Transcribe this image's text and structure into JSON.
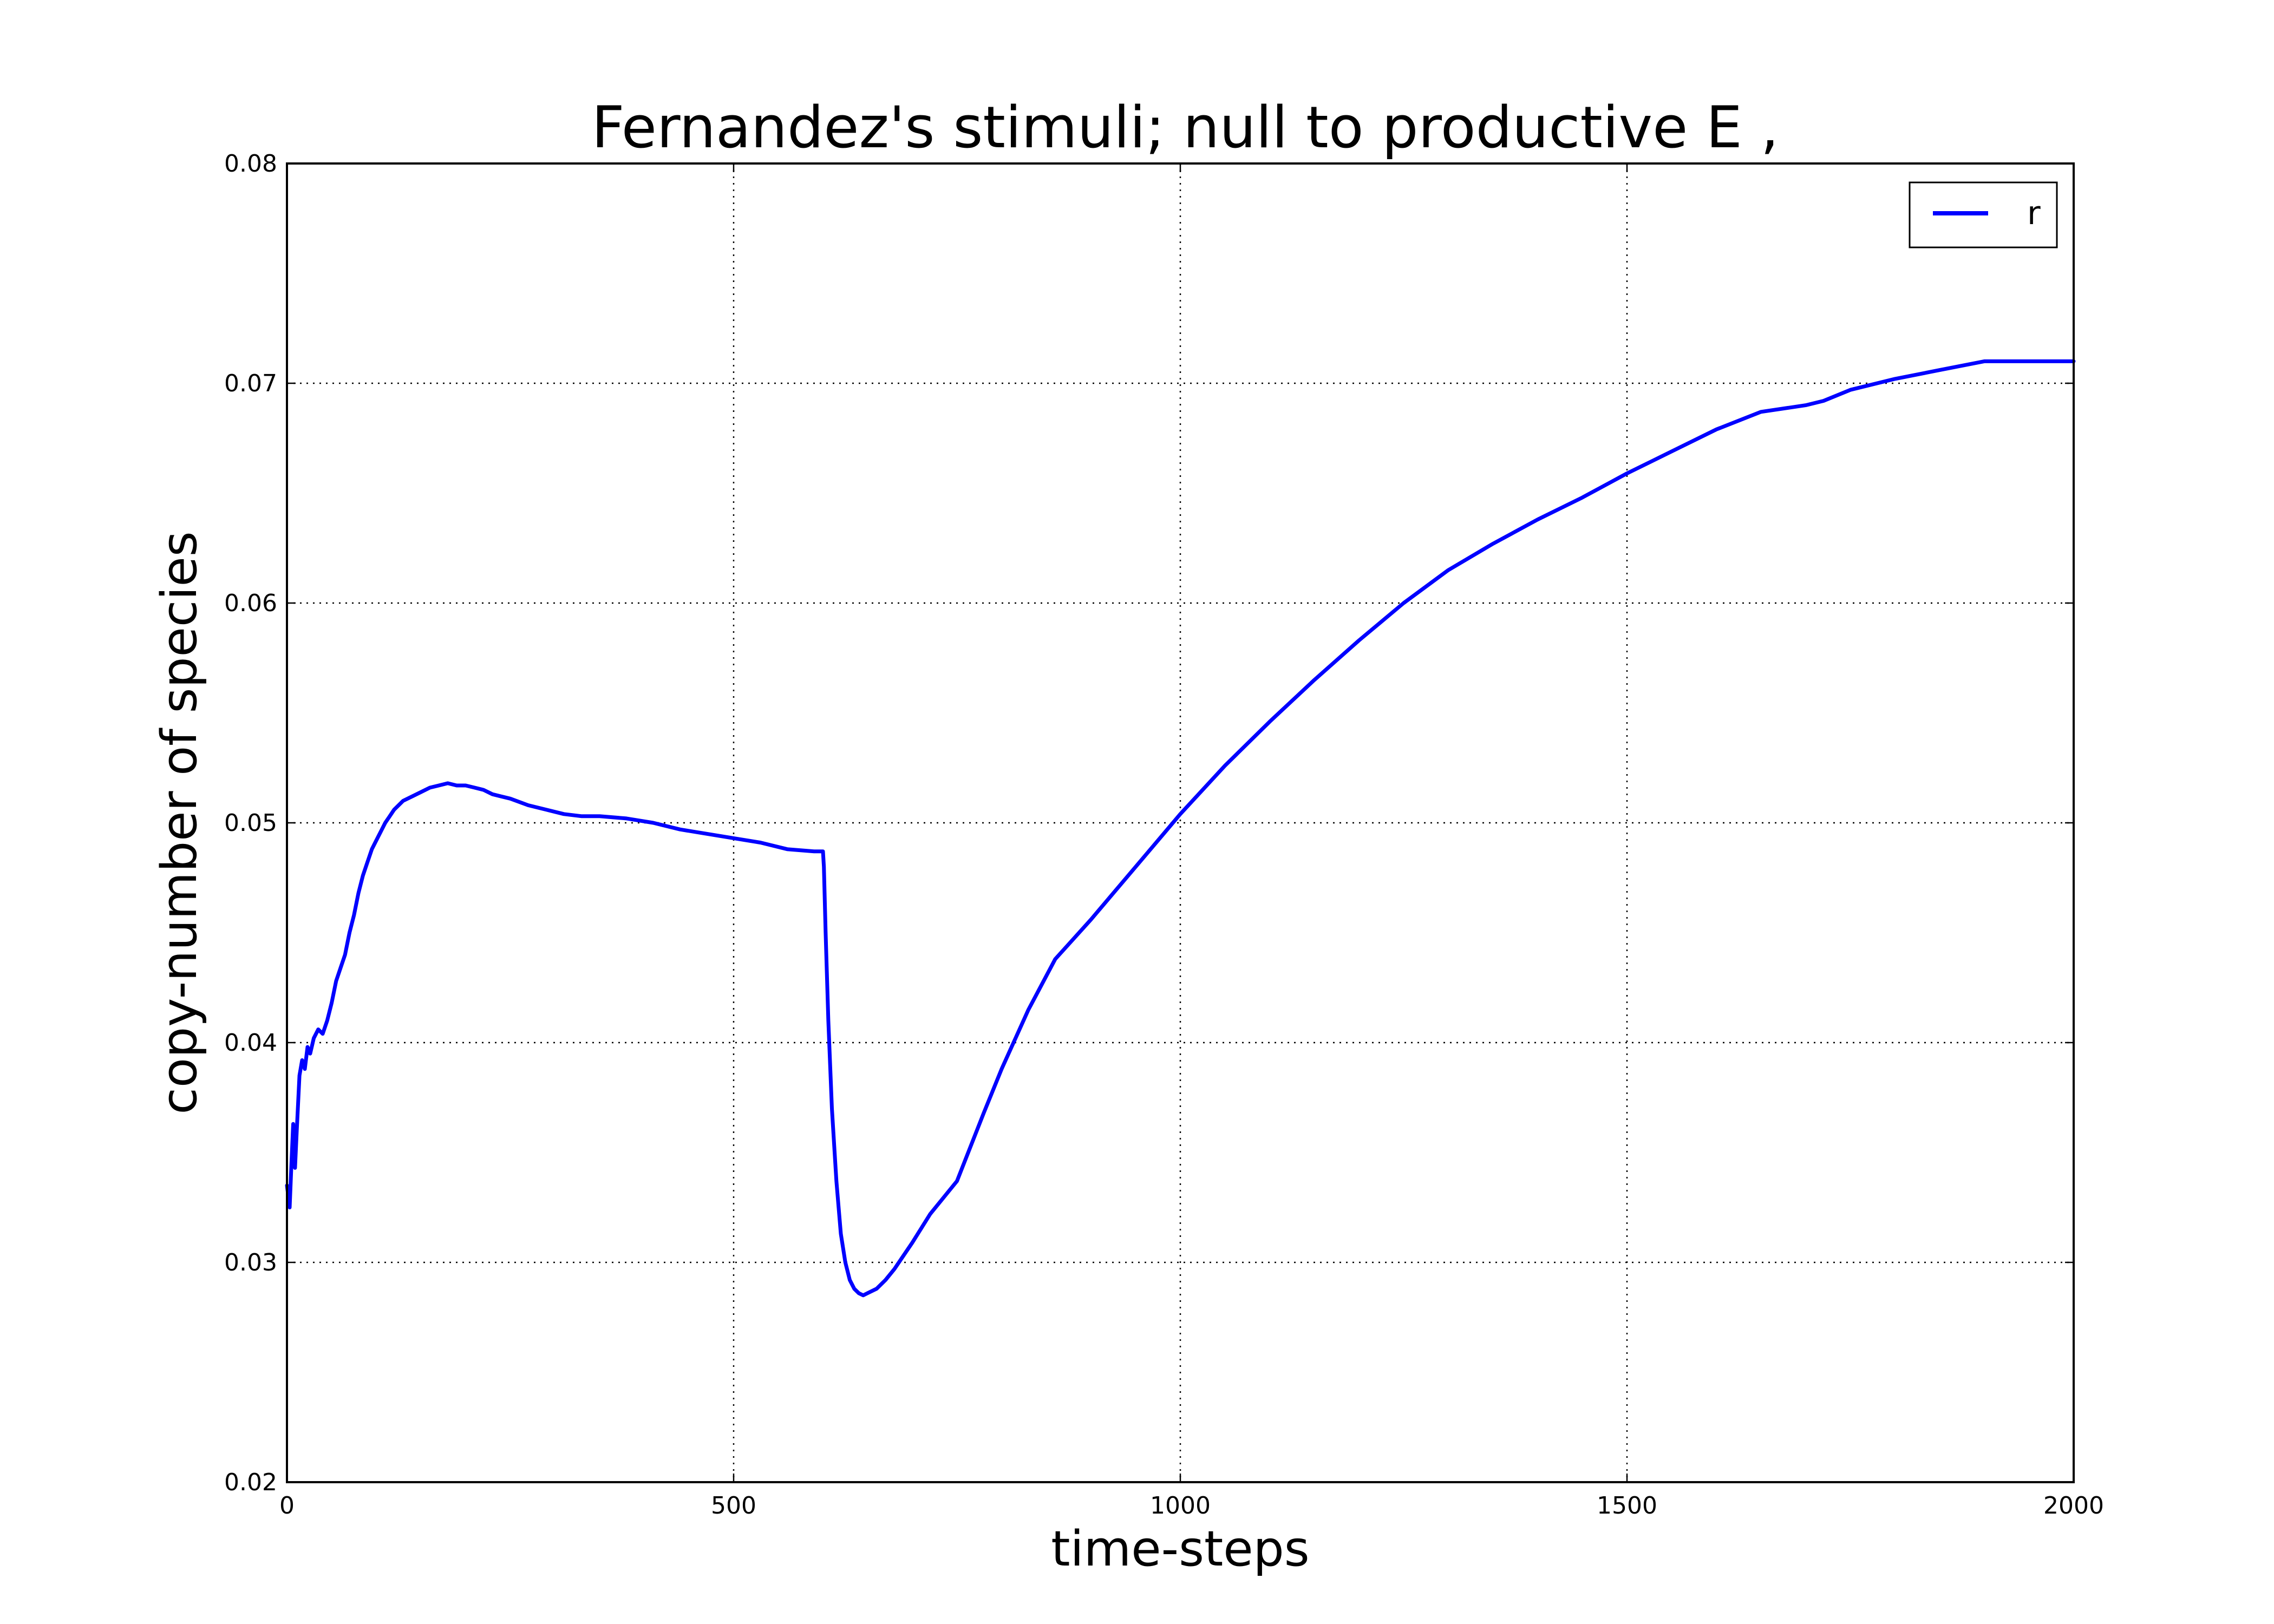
{
  "chart_data": {
    "type": "line",
    "title": "Fernandez's stimuli; null to productive E ,",
    "xlabel": "time-steps",
    "ylabel": "copy-number of species",
    "xlim": [
      0,
      2000
    ],
    "ylim": [
      0.02,
      0.08
    ],
    "xticks": [
      0,
      500,
      1000,
      1500,
      2000
    ],
    "yticks": [
      0.02,
      0.03,
      0.04,
      0.05,
      0.06,
      0.07,
      0.08
    ],
    "xtick_labels": [
      "0",
      "500",
      "1000",
      "1500",
      "2000"
    ],
    "ytick_labels": [
      "0.02",
      "0.03",
      "0.04",
      "0.05",
      "0.06",
      "0.07",
      "0.08"
    ],
    "grid": true,
    "legend_position": "top-right",
    "series": [
      {
        "name": "r",
        "color": "#0000ff",
        "x": [
          0,
          3,
          5,
          7,
          9,
          11,
          14,
          17,
          20,
          23,
          26,
          30,
          35,
          40,
          45,
          50,
          55,
          60,
          65,
          70,
          75,
          80,
          85,
          90,
          95,
          100,
          105,
          110,
          115,
          120,
          130,
          140,
          150,
          160,
          170,
          180,
          190,
          200,
          210,
          220,
          230,
          240,
          250,
          270,
          290,
          310,
          330,
          350,
          380,
          410,
          440,
          470,
          500,
          530,
          560,
          590,
          600,
          601,
          603,
          606,
          610,
          615,
          620,
          625,
          630,
          635,
          640,
          645,
          650,
          660,
          670,
          680,
          700,
          720,
          750,
          780,
          800,
          830,
          860,
          880,
          900,
          950,
          1000,
          1050,
          1100,
          1150,
          1200,
          1250,
          1300,
          1350,
          1400,
          1450,
          1500,
          1550,
          1600,
          1650,
          1700,
          1720,
          1750,
          1800,
          1850,
          1900,
          1950,
          2000
        ],
        "y": [
          0.0335,
          0.0325,
          0.0345,
          0.0363,
          0.0343,
          0.036,
          0.0385,
          0.0392,
          0.0388,
          0.0398,
          0.0395,
          0.0402,
          0.0406,
          0.0404,
          0.041,
          0.0418,
          0.0428,
          0.0434,
          0.044,
          0.045,
          0.0458,
          0.0468,
          0.0476,
          0.0482,
          0.0488,
          0.0492,
          0.0496,
          0.05,
          0.0503,
          0.0506,
          0.051,
          0.0512,
          0.0514,
          0.0516,
          0.0517,
          0.0518,
          0.0517,
          0.0517,
          0.0516,
          0.0515,
          0.0513,
          0.0512,
          0.0511,
          0.0508,
          0.0506,
          0.0504,
          0.0503,
          0.0503,
          0.0502,
          0.05,
          0.0497,
          0.0495,
          0.0493,
          0.0491,
          0.0488,
          0.0487,
          0.0487,
          0.048,
          0.045,
          0.041,
          0.037,
          0.0337,
          0.0313,
          0.03,
          0.0292,
          0.0288,
          0.0286,
          0.0285,
          0.0286,
          0.0288,
          0.0292,
          0.0297,
          0.0309,
          0.0322,
          0.0337,
          0.0368,
          0.0388,
          0.0415,
          0.0438,
          0.0447,
          0.0456,
          0.048,
          0.0504,
          0.0526,
          0.0546,
          0.0565,
          0.0583,
          0.06,
          0.0615,
          0.0627,
          0.0638,
          0.0648,
          0.0659,
          0.0669,
          0.0679,
          0.0687,
          0.069,
          0.0692,
          0.0697,
          0.0702,
          0.0706,
          0.071,
          0.071,
          0.071
        ]
      }
    ]
  }
}
